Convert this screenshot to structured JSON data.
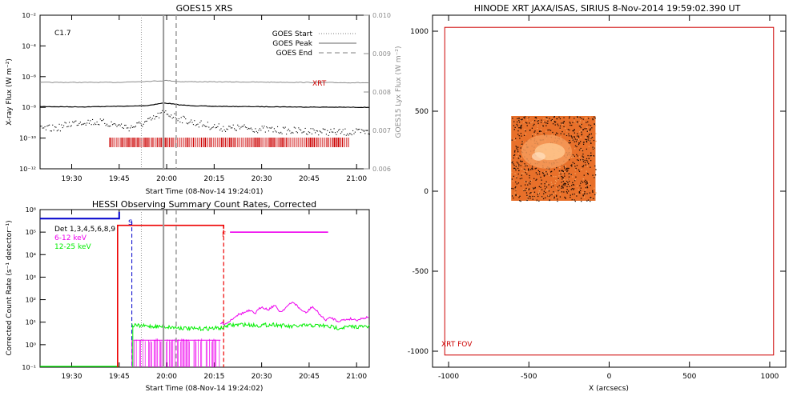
{
  "colors": {
    "frame": "#000000",
    "goes_long": "#000000",
    "goes_short": "#000000",
    "lyx": "#8c8c8c",
    "xrt_mark": "#cc0000",
    "lines": "#999999",
    "att_blue": "#0000cc",
    "att_red": "#ee0000",
    "band1": "#ee00ee",
    "band2": "#00ee00",
    "xrt_frame": "#cc0000",
    "image_bg": "#e8702a",
    "image_dark": "#1a0a04",
    "image_bright": "#ffc890"
  },
  "chart_data": [
    {
      "id": "goes",
      "type": "line",
      "title": "GOES15 XRS",
      "xlabel": "Start Time (08-Nov-14 19:24:01)",
      "ylabel": "X-ray Flux (W m⁻²)",
      "y2label": "GOES15 Lyx Flux (W m⁻²)",
      "annotation": "C1.7",
      "x_range_min": [
        -4,
        100
      ],
      "x_ticks_min": [
        6,
        21,
        36,
        51,
        66,
        81,
        96
      ],
      "x_ticks": [
        "19:30",
        "19:45",
        "20:00",
        "20:15",
        "20:30",
        "20:45",
        "21:00"
      ],
      "y_log_range": [
        -12,
        -2
      ],
      "y_ticks_exp": [
        -12,
        -10,
        -8,
        -6,
        -4,
        -2
      ],
      "y_tick_labels": [
        "10⁻¹²",
        "10⁻¹⁰",
        "10⁻⁸",
        "10⁻⁶",
        "10⁻⁴",
        "10⁻²"
      ],
      "y2_range": [
        0.006,
        0.01
      ],
      "y2_ticks": [
        "0.006",
        "0.007",
        "0.008",
        "0.009",
        "0.010"
      ],
      "legend": [
        {
          "name": "GOES Start",
          "style": "dotted"
        },
        {
          "name": "GOES Peak",
          "style": "solid"
        },
        {
          "name": "GOES End",
          "style": "dashed"
        }
      ],
      "legend_position": "top-right",
      "xrt_label": "XRT",
      "goes_start_min": 28,
      "goes_peak_min": 35,
      "goes_end_min": 39,
      "xrt_coverage_min": [
        18,
        94
      ],
      "series": [
        {
          "style": "solid",
          "x": [
            -4,
            10,
            20,
            25,
            30,
            33,
            35,
            37,
            40,
            45,
            50,
            60,
            70,
            80,
            90,
            100
          ],
          "y": [
            -7.95,
            -7.97,
            -7.93,
            -7.92,
            -7.88,
            -7.78,
            -7.72,
            -7.75,
            -7.84,
            -7.9,
            -7.93,
            -7.95,
            -7.96,
            -7.98,
            -7.99,
            -8.0
          ]
        },
        {
          "style": "dotted",
          "x": [
            -4,
            2,
            6,
            10,
            15,
            20,
            24,
            28,
            31,
            33,
            35,
            37,
            40,
            45,
            50,
            55,
            60,
            65,
            70,
            75,
            80,
            85,
            90,
            95,
            100
          ],
          "y": [
            -9.4,
            -9.3,
            -9.0,
            -8.9,
            -8.95,
            -9.1,
            -9.3,
            -9.05,
            -8.8,
            -8.55,
            -8.3,
            -8.45,
            -8.7,
            -9.0,
            -9.2,
            -9.35,
            -9.3,
            -9.4,
            -9.45,
            -9.5,
            -9.5,
            -9.55,
            -9.6,
            -9.6,
            -9.6
          ]
        },
        {
          "style": "lyx",
          "x": [
            -4,
            20,
            34,
            36,
            40,
            60,
            80,
            100
          ],
          "y": [
            0.00825,
            0.00825,
            0.00829,
            0.0083,
            0.00827,
            0.00826,
            0.00825,
            0.00824
          ]
        }
      ]
    },
    {
      "id": "hessi",
      "type": "line",
      "title": "HESSI Observing Summary Count Rates, Corrected",
      "xlabel": "Start Time (08-Nov-14 19:24:02)",
      "ylabel": "Corrected Count Rate (s⁻¹ detector⁻¹)",
      "x_range_min": [
        -4,
        100
      ],
      "x_ticks_min": [
        6,
        21,
        36,
        51,
        66,
        81,
        96
      ],
      "x_ticks": [
        "19:30",
        "19:45",
        "20:00",
        "20:15",
        "20:30",
        "20:45",
        "21:00"
      ],
      "y_log_range": [
        -1,
        6
      ],
      "y_tick_labels": [
        "10⁻¹",
        "10⁰",
        "10¹",
        "10²",
        "10³",
        "10⁴",
        "10⁵",
        "10⁶"
      ],
      "legend": [
        {
          "name": "Det 1,3,4,5,6,8,9",
          "color": "#000000"
        },
        {
          "name": "6-12 keV",
          "color": "#ee00ee"
        },
        {
          "name": "12-25 keV",
          "color": "#00ee00"
        }
      ],
      "legend_position": "top-left",
      "s_label": "S",
      "f_label": "F",
      "goes_start_min": 28,
      "goes_peak_min": 35,
      "goes_end_min": 39,
      "saa_blue_end_min": 21,
      "saa_blue_dash_min": 25,
      "night_red_start_min": 20.5,
      "night_red_end_min": 54,
      "band1_min_start": 25,
      "band2_min_start": 25,
      "series": [
        {
          "name": "6-12 keV",
          "x": [
            55,
            58,
            62,
            64,
            66,
            68,
            70,
            72,
            74,
            76,
            78,
            80,
            82,
            84,
            86,
            88,
            90,
            92,
            94,
            96,
            100
          ],
          "y": [
            0.95,
            1.3,
            1.5,
            1.4,
            1.7,
            1.55,
            1.75,
            1.45,
            1.7,
            1.9,
            1.6,
            1.4,
            1.7,
            1.4,
            1.1,
            1.2,
            1.05,
            1.1,
            1.15,
            1.1,
            1.25
          ]
        },
        {
          "name": "12-25 keV",
          "x": [
            25,
            35,
            45,
            54,
            55,
            60,
            65,
            70,
            75,
            80,
            85,
            90,
            95,
            100
          ],
          "y": [
            0.85,
            0.8,
            0.7,
            0.75,
            0.85,
            0.9,
            0.85,
            0.9,
            0.8,
            0.85,
            0.85,
            0.75,
            0.8,
            0.8
          ]
        }
      ]
    },
    {
      "id": "xrt",
      "type": "heatmap",
      "title": "HINODE XRT JAXA/ISAS, SIRIUS   8-Nov-2014 19:59:02.390 UT",
      "xlabel": "X (arcsecs)",
      "x_range": [
        -1100,
        1100
      ],
      "y_range": [
        -1100,
        1100
      ],
      "x_ticks": [
        -1000,
        -500,
        0,
        500,
        1000
      ],
      "y_ticks": [
        -1000,
        -500,
        0,
        500,
        1000
      ],
      "fov_label": "XRT FOV",
      "fov_box": [
        -1024,
        -1024,
        1024,
        1024
      ],
      "image_box": [
        -610,
        -60,
        -85,
        470
      ]
    }
  ]
}
